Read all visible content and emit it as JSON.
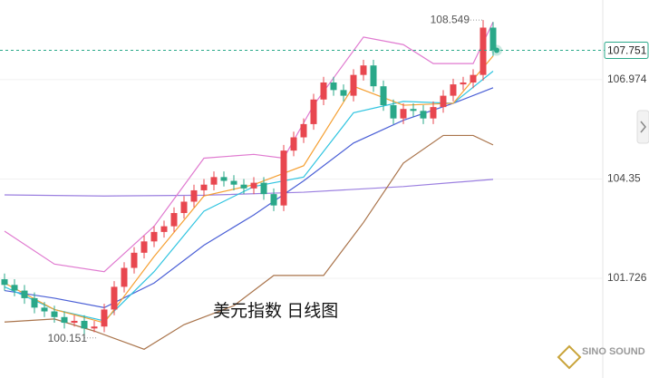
{
  "chart_data": {
    "type": "candlestick",
    "annotation": "美元指数 日线图",
    "watermark": "SINO SOUND",
    "up_color": "#e8474f",
    "down_color": "#2aa889",
    "ylim": [
      99.09,
      109.08
    ],
    "yticks": [
      101.726,
      104.35,
      106.974
    ],
    "grid": true,
    "open": [
      101.7,
      101.55,
      101.4,
      101.2,
      100.95,
      100.85,
      100.7,
      100.55,
      100.6,
      100.4,
      100.45,
      100.9,
      101.5,
      102.0,
      102.4,
      102.7,
      102.95,
      103.1,
      103.45,
      103.75,
      104.05,
      104.2,
      104.4,
      104.3,
      104.2,
      104.1,
      104.25,
      103.95,
      103.65,
      105.1,
      105.45,
      105.8,
      106.45,
      106.9,
      106.7,
      106.55,
      107.1,
      107.35,
      106.8,
      106.3,
      105.95,
      106.2,
      106.15,
      105.95,
      106.25,
      106.55,
      106.85,
      106.9,
      107.1,
      108.35
    ],
    "high": [
      101.85,
      101.7,
      101.55,
      101.35,
      101.1,
      101.0,
      100.85,
      100.75,
      100.75,
      100.6,
      101.05,
      101.65,
      102.15,
      102.55,
      102.85,
      103.1,
      103.25,
      103.6,
      103.9,
      104.2,
      104.35,
      104.55,
      104.55,
      104.45,
      104.35,
      104.4,
      104.4,
      104.1,
      105.25,
      105.6,
      105.95,
      106.6,
      107.05,
      107.05,
      106.85,
      107.25,
      107.5,
      107.5,
      106.95,
      106.45,
      106.35,
      106.35,
      106.3,
      106.4,
      106.7,
      107.0,
      107.05,
      107.25,
      108.549,
      108.5
    ],
    "low": [
      101.4,
      101.25,
      101.05,
      100.8,
      100.7,
      100.55,
      100.4,
      100.45,
      100.151,
      100.3,
      100.3,
      100.75,
      101.35,
      101.85,
      102.25,
      102.55,
      102.8,
      102.95,
      103.3,
      103.6,
      103.9,
      104.05,
      104.15,
      104.05,
      103.95,
      103.95,
      103.8,
      103.5,
      103.5,
      104.95,
      105.3,
      105.65,
      106.3,
      106.55,
      106.4,
      106.4,
      106.95,
      106.65,
      106.15,
      105.8,
      105.8,
      106.0,
      105.8,
      105.8,
      106.1,
      106.4,
      106.7,
      106.75,
      106.95,
      107.6
    ],
    "close": [
      101.55,
      101.4,
      101.2,
      100.95,
      100.85,
      100.7,
      100.55,
      100.6,
      100.4,
      100.45,
      100.9,
      101.5,
      102.0,
      102.4,
      102.7,
      102.95,
      103.1,
      103.45,
      103.75,
      104.05,
      104.2,
      104.4,
      104.3,
      104.2,
      104.1,
      104.25,
      103.95,
      103.65,
      105.1,
      105.45,
      105.8,
      106.45,
      106.9,
      106.7,
      106.55,
      107.1,
      107.35,
      106.8,
      106.3,
      105.95,
      106.2,
      106.15,
      105.95,
      106.25,
      106.55,
      106.85,
      106.9,
      107.1,
      108.35,
      107.751
    ],
    "lines": [
      {
        "color": "#9b7fe0",
        "x": [
          0,
          10,
          20,
          30,
          40,
          49
        ],
        "values": [
          103.93,
          103.9,
          103.92,
          104.0,
          104.15,
          104.34
        ]
      },
      {
        "color": "#4a5fd6",
        "x": [
          0,
          5,
          10,
          15,
          20,
          25,
          30,
          35,
          40,
          45,
          49
        ],
        "values": [
          101.4,
          101.2,
          100.95,
          101.6,
          102.6,
          103.4,
          104.3,
          105.3,
          105.9,
          106.35,
          106.76
        ]
      },
      {
        "color": "#2fc4e0",
        "x": [
          0,
          5,
          10,
          15,
          20,
          25,
          30,
          35,
          40,
          45,
          49
        ],
        "values": [
          101.5,
          100.9,
          100.6,
          101.9,
          103.5,
          104.15,
          104.4,
          106.1,
          106.4,
          106.35,
          107.2
        ]
      },
      {
        "color": "#f5a033",
        "x": [
          0,
          5,
          10,
          15,
          20,
          25,
          30,
          35,
          40,
          45,
          49
        ],
        "values": [
          101.6,
          100.9,
          100.55,
          102.3,
          103.9,
          104.2,
          104.7,
          106.8,
          106.3,
          106.35,
          107.6
        ]
      },
      {
        "color": "#e07ad0",
        "x": [
          0,
          5,
          10,
          15,
          20,
          25,
          28,
          31,
          36,
          40,
          43,
          47,
          49
        ],
        "values": [
          102.97,
          102.1,
          101.9,
          103.1,
          104.9,
          105.0,
          104.9,
          106.3,
          108.1,
          107.9,
          107.4,
          107.4,
          108.5
        ]
      },
      {
        "color": "#a9734a",
        "x": [
          0,
          5,
          9,
          14,
          18,
          23,
          27,
          32,
          36,
          40,
          44,
          47,
          49
        ],
        "values": [
          100.57,
          100.65,
          100.33,
          99.85,
          100.5,
          101.0,
          101.8,
          101.8,
          103.2,
          104.77,
          105.5,
          105.5,
          105.25
        ]
      }
    ]
  }
}
